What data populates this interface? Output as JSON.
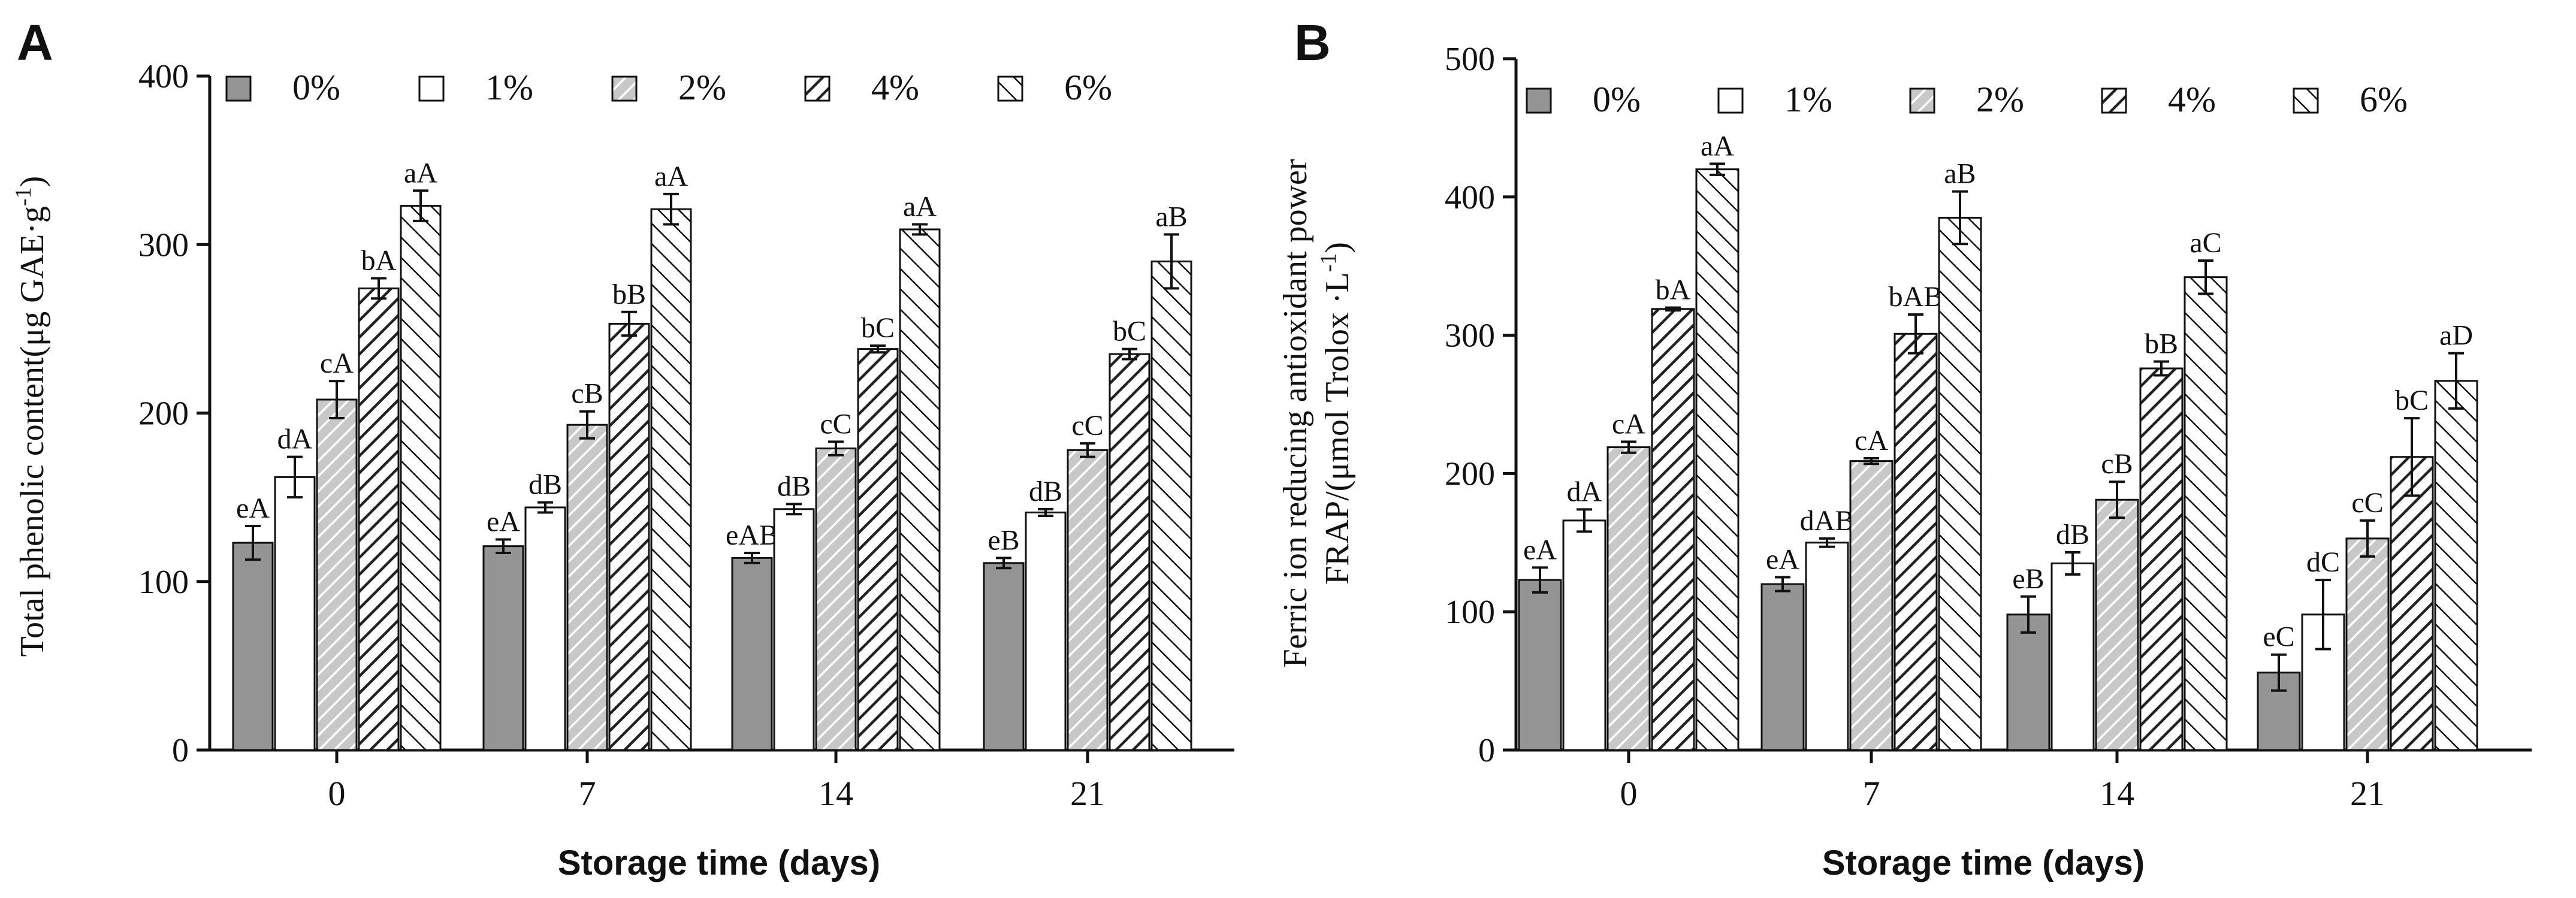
{
  "chart_data": [
    {
      "type": "bar",
      "panel_letter": "A",
      "ylabel_main": "Total phenolic content(μg GAE·g",
      "ylabel_sup": "-1",
      "ylabel_end": ")",
      "xlabel": "Storage time (days)",
      "ylim": [
        0,
        400
      ],
      "yticks": [
        0,
        100,
        200,
        300,
        400
      ],
      "ytick_labels": [
        "0",
        "100",
        "200",
        "300",
        "400"
      ],
      "categories": [
        "0",
        "7",
        "14",
        "21"
      ],
      "series": [
        {
          "name": "0%",
          "pattern": "solid-gray",
          "values": [
            123,
            121,
            114,
            111
          ],
          "errors": [
            10,
            4,
            3,
            3
          ],
          "labels": [
            "eA",
            "eA",
            "eAB",
            "eB"
          ]
        },
        {
          "name": "1%",
          "pattern": "white",
          "values": [
            162,
            144,
            143,
            141
          ],
          "errors": [
            12,
            3,
            3,
            2
          ],
          "labels": [
            "dA",
            "dB",
            "dB",
            "dB"
          ]
        },
        {
          "name": "2%",
          "pattern": "gray-hatch",
          "values": [
            208,
            193,
            179,
            178
          ],
          "errors": [
            11,
            8,
            4,
            4
          ],
          "labels": [
            "cA",
            "cB",
            "cC",
            "cC"
          ]
        },
        {
          "name": "4%",
          "pattern": "dense-hatch",
          "values": [
            274,
            253,
            238,
            235
          ],
          "errors": [
            6,
            7,
            2,
            3
          ],
          "labels": [
            "bA",
            "bB",
            "bC",
            "bC"
          ]
        },
        {
          "name": "6%",
          "pattern": "wide-hatch",
          "values": [
            323,
            321,
            309,
            290
          ],
          "errors": [
            9,
            9,
            3,
            16
          ],
          "labels": [
            "aA",
            "aA",
            "aA",
            "aB"
          ]
        }
      ],
      "legend": [
        "0%",
        "1%",
        "2%",
        "4%",
        "6%"
      ],
      "legend_position": "top",
      "grid": false
    },
    {
      "type": "bar",
      "panel_letter": "B",
      "ylabel_line1": "Ferric ion reducing antioxidant power",
      "ylabel_main": "FRAP/(μmol Trolox ·L",
      "ylabel_sup": "-1",
      "ylabel_end": ")",
      "xlabel": "Storage time (days)",
      "ylim": [
        0,
        500
      ],
      "yticks": [
        0,
        100,
        200,
        300,
        400,
        500
      ],
      "ytick_labels": [
        "0",
        "100",
        "200",
        "300",
        "400",
        "500"
      ],
      "categories": [
        "0",
        "7",
        "14",
        "21"
      ],
      "series": [
        {
          "name": "0%",
          "pattern": "solid-gray",
          "values": [
            123,
            120,
            98,
            56
          ],
          "errors": [
            9,
            5,
            13,
            13
          ],
          "labels": [
            "eA",
            "eA",
            "eB",
            "eC"
          ]
        },
        {
          "name": "1%",
          "pattern": "white",
          "values": [
            166,
            150,
            135,
            98
          ],
          "errors": [
            8,
            3,
            8,
            25
          ],
          "labels": [
            "dA",
            "dAB",
            "dB",
            "dC"
          ]
        },
        {
          "name": "2%",
          "pattern": "gray-hatch",
          "values": [
            219,
            209,
            181,
            153
          ],
          "errors": [
            4,
            2,
            13,
            13
          ],
          "labels": [
            "cA",
            "cA",
            "cB",
            "cC"
          ]
        },
        {
          "name": "4%",
          "pattern": "dense-hatch",
          "values": [
            319,
            301,
            276,
            212
          ],
          "errors": [
            1,
            14,
            5,
            28
          ],
          "labels": [
            "bA",
            "bAB",
            "bB",
            "bC"
          ]
        },
        {
          "name": "6%",
          "pattern": "wide-hatch",
          "values": [
            420,
            385,
            342,
            267
          ],
          "errors": [
            4,
            19,
            12,
            20
          ],
          "labels": [
            "aA",
            "aB",
            "aC",
            "aD"
          ]
        }
      ],
      "legend": [
        "0%",
        "1%",
        "2%",
        "4%",
        "6%"
      ],
      "legend_position": "top",
      "grid": false
    }
  ],
  "colors": {
    "solid_bar": "#949494",
    "hatch_bg": "#ffffff",
    "hatch_gray_bg": "#c8c8c8",
    "ink": "#111111"
  }
}
